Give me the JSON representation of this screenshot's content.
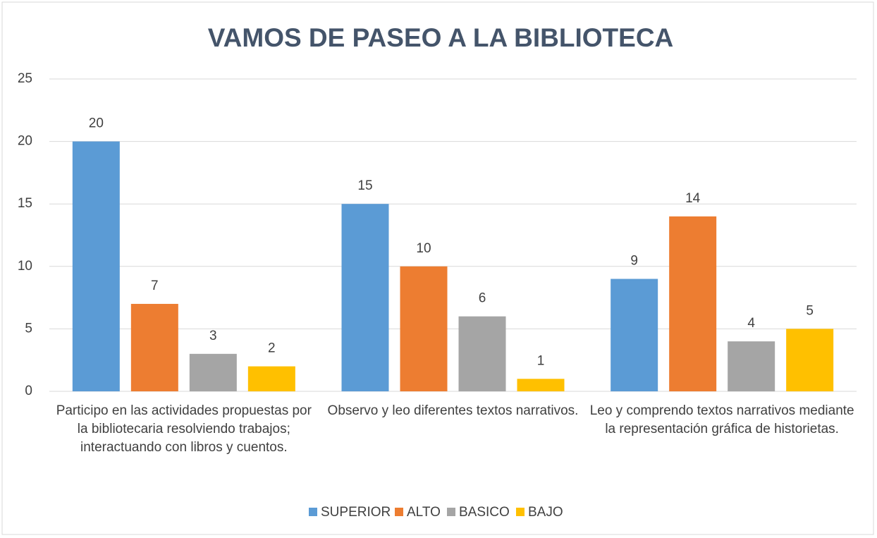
{
  "chart_data": {
    "type": "bar",
    "title": "VAMOS DE PASEO A LA BIBLIOTECA",
    "categories": [
      "Participo en las actividades propuestas por la bibliotecaria resolviendo trabajos; interactuando con libros y cuentos.",
      "Observo y leo diferentes textos narrativos.",
      "Leo y comprendo textos narrativos mediante la representación gráfica de historietas."
    ],
    "series": [
      {
        "name": "SUPERIOR",
        "color": "#5b9bd5",
        "values": [
          20,
          15,
          9
        ]
      },
      {
        "name": "ALTO",
        "color": "#ed7d31",
        "values": [
          7,
          10,
          14
        ]
      },
      {
        "name": "BASICO",
        "color": "#a5a5a5",
        "values": [
          3,
          6,
          4
        ]
      },
      {
        "name": "BAJO",
        "color": "#ffc000",
        "values": [
          2,
          1,
          5
        ]
      }
    ],
    "ylim": [
      0,
      25
    ],
    "yticks": [
      0,
      5,
      10,
      15,
      20,
      25
    ],
    "grid": true,
    "legend": "bottom"
  }
}
